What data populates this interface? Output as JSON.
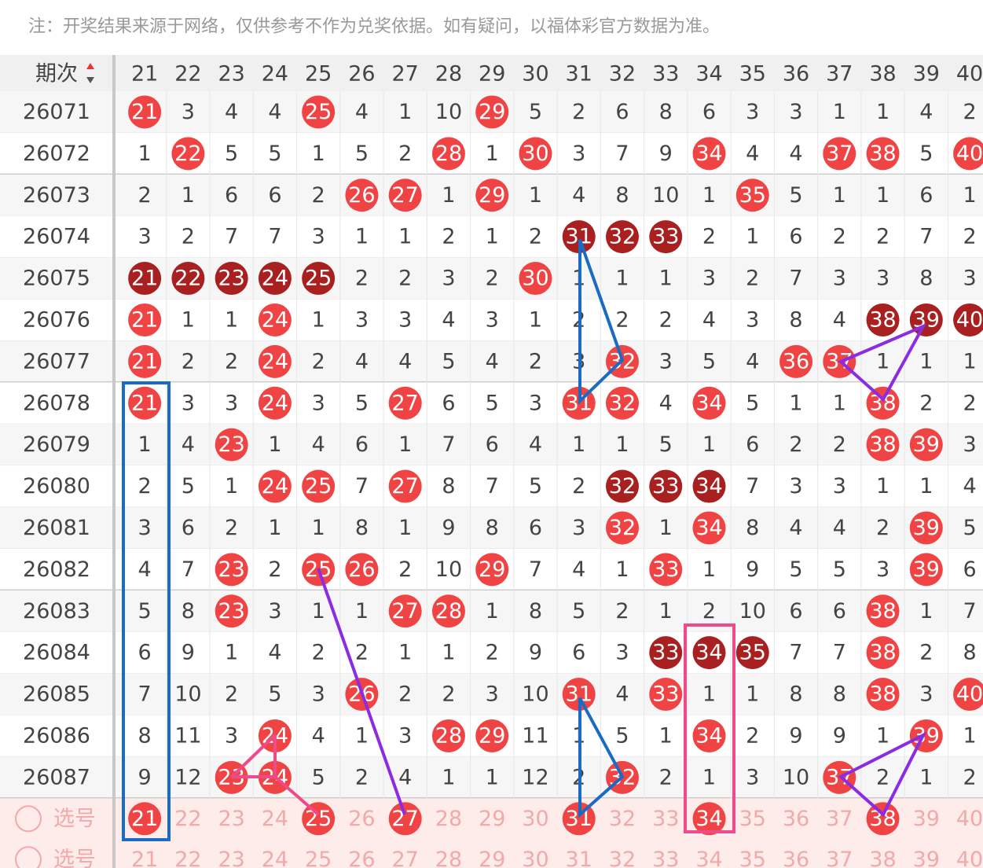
{
  "note": "注：开奖结果来源于网络，仅供参考不作为兑奖依据。如有疑问，以福体彩官方数据为准。",
  "header_label": "期次",
  "columns": [
    21,
    22,
    23,
    24,
    25,
    26,
    27,
    28,
    29,
    30,
    31,
    32,
    33,
    34,
    35,
    36,
    37,
    38,
    39,
    40
  ],
  "rows": [
    {
      "period": "26071",
      "cells": [
        21,
        3,
        4,
        4,
        25,
        4,
        1,
        10,
        29,
        5,
        2,
        6,
        8,
        6,
        3,
        3,
        1,
        1,
        4,
        2
      ],
      "dark": []
    },
    {
      "period": "26072",
      "cells": [
        1,
        22,
        5,
        5,
        1,
        5,
        2,
        28,
        1,
        30,
        3,
        7,
        9,
        34,
        4,
        4,
        37,
        38,
        5,
        40
      ],
      "dark": []
    },
    {
      "period": "26073",
      "cells": [
        2,
        1,
        6,
        6,
        2,
        26,
        27,
        1,
        29,
        1,
        4,
        8,
        10,
        1,
        35,
        5,
        1,
        1,
        6,
        1
      ],
      "dark": []
    },
    {
      "period": "26074",
      "cells": [
        3,
        2,
        7,
        7,
        3,
        1,
        1,
        2,
        1,
        2,
        31,
        32,
        33,
        2,
        1,
        6,
        2,
        2,
        7,
        2
      ],
      "dark": [
        10,
        11,
        12
      ]
    },
    {
      "period": "26075",
      "cells": [
        21,
        22,
        23,
        24,
        25,
        2,
        2,
        3,
        2,
        30,
        1,
        1,
        1,
        3,
        2,
        7,
        3,
        3,
        8,
        3
      ],
      "dark": [
        0,
        1,
        2,
        3,
        4
      ]
    },
    {
      "period": "26076",
      "cells": [
        21,
        1,
        1,
        24,
        1,
        3,
        3,
        4,
        3,
        1,
        2,
        2,
        2,
        4,
        3,
        8,
        4,
        38,
        39,
        40
      ],
      "dark": [
        17,
        18,
        19
      ]
    },
    {
      "period": "26077",
      "cells": [
        21,
        2,
        2,
        24,
        2,
        4,
        4,
        5,
        4,
        2,
        3,
        32,
        3,
        5,
        4,
        36,
        37,
        1,
        1,
        1
      ],
      "dark": []
    },
    {
      "period": "26078",
      "cells": [
        21,
        3,
        3,
        24,
        3,
        5,
        27,
        6,
        5,
        3,
        31,
        32,
        4,
        34,
        5,
        1,
        1,
        38,
        2,
        2
      ],
      "dark": []
    },
    {
      "period": "26079",
      "cells": [
        1,
        4,
        23,
        1,
        4,
        6,
        1,
        7,
        6,
        4,
        1,
        1,
        5,
        1,
        6,
        2,
        2,
        38,
        39,
        3
      ],
      "dark": []
    },
    {
      "period": "26080",
      "cells": [
        2,
        5,
        1,
        24,
        25,
        7,
        27,
        8,
        7,
        5,
        2,
        32,
        33,
        34,
        7,
        3,
        3,
        1,
        1,
        4
      ],
      "dark": [
        11,
        12,
        13
      ]
    },
    {
      "period": "26081",
      "cells": [
        3,
        6,
        2,
        1,
        1,
        8,
        1,
        9,
        8,
        6,
        3,
        32,
        1,
        34,
        8,
        4,
        4,
        2,
        39,
        5
      ],
      "dark": []
    },
    {
      "period": "26082",
      "cells": [
        4,
        7,
        23,
        2,
        25,
        26,
        2,
        10,
        29,
        7,
        4,
        1,
        33,
        1,
        9,
        5,
        5,
        3,
        39,
        6
      ],
      "dark": []
    },
    {
      "period": "26083",
      "cells": [
        5,
        8,
        23,
        3,
        1,
        1,
        27,
        28,
        1,
        8,
        5,
        2,
        1,
        2,
        10,
        6,
        6,
        38,
        1,
        7
      ],
      "dark": []
    },
    {
      "period": "26084",
      "cells": [
        6,
        9,
        1,
        4,
        2,
        2,
        1,
        1,
        2,
        9,
        6,
        3,
        33,
        34,
        35,
        7,
        7,
        38,
        2,
        8
      ],
      "dark": [
        12,
        13,
        14
      ]
    },
    {
      "period": "26085",
      "cells": [
        7,
        10,
        2,
        5,
        3,
        26,
        2,
        2,
        3,
        10,
        31,
        4,
        33,
        1,
        1,
        8,
        8,
        38,
        3,
        40
      ],
      "dark": []
    },
    {
      "period": "26086",
      "cells": [
        8,
        11,
        3,
        24,
        4,
        1,
        3,
        28,
        29,
        11,
        1,
        5,
        1,
        34,
        2,
        9,
        9,
        1,
        39,
        1
      ],
      "dark": []
    },
    {
      "period": "26087",
      "cells": [
        9,
        12,
        23,
        24,
        5,
        2,
        4,
        1,
        1,
        12,
        2,
        32,
        2,
        1,
        3,
        10,
        37,
        2,
        1,
        2
      ],
      "dark": []
    }
  ],
  "select_rows": [
    {
      "label": "选号",
      "numbers": [
        21,
        22,
        23,
        24,
        25,
        26,
        27,
        28,
        29,
        30,
        31,
        32,
        33,
        34,
        35,
        36,
        37,
        38,
        39,
        40
      ],
      "picked": [
        0,
        4,
        6,
        10,
        13,
        17
      ]
    },
    {
      "label": "选号",
      "numbers": [
        21,
        22,
        23,
        24,
        25,
        26,
        27,
        28,
        29,
        30,
        31,
        32,
        33,
        34,
        35,
        36,
        37,
        38,
        39,
        40
      ],
      "picked": []
    }
  ]
}
